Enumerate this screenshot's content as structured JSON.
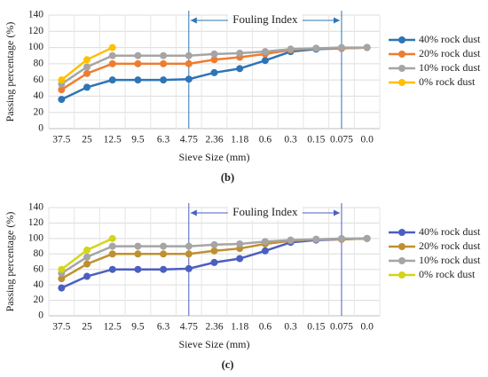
{
  "chart_data": [
    {
      "type": "line",
      "caption": "(b)",
      "xlabel": "Sieve  Size (mm)",
      "ylabel": "Passing percentage (%)",
      "categories": [
        "37.5",
        "25",
        "12.5",
        "9.5",
        "6.3",
        "4.75",
        "2.36",
        "1.18",
        "0.6",
        "0.3",
        "0.15",
        "0.075",
        "0.0"
      ],
      "ylim": [
        0,
        140
      ],
      "yticks": [
        0,
        20,
        40,
        60,
        80,
        100,
        120,
        140
      ],
      "grid": true,
      "annotation": {
        "text": "Fouling Index",
        "from": "4.75",
        "to": "0.075",
        "color": "#2e75b6"
      },
      "series": [
        {
          "name": "40% rock dust",
          "color": "#2e75b6",
          "values": [
            36,
            51,
            60,
            60,
            60,
            61,
            69,
            74,
            84,
            95,
            98,
            99,
            100
          ]
        },
        {
          "name": "20% rock dust",
          "color": "#ed7d31",
          "values": [
            48,
            68,
            80,
            80,
            80,
            80,
            85,
            88,
            92,
            97,
            99,
            99,
            100
          ]
        },
        {
          "name": "10% rock dust",
          "color": "#a5a5a5",
          "values": [
            55,
            76,
            90,
            90,
            90,
            90,
            92,
            93,
            95,
            98,
            99,
            100,
            100
          ]
        },
        {
          "name": "0% rock dust",
          "color": "#ffc000",
          "values": [
            60,
            85,
            100,
            null,
            null,
            null,
            null,
            null,
            null,
            null,
            null,
            null,
            null
          ]
        }
      ]
    },
    {
      "type": "line",
      "caption": "(c)",
      "xlabel": "Sieve  Size (mm)",
      "ylabel": "Passing percentage (%)",
      "categories": [
        "37.5",
        "25",
        "12.5",
        "9.5",
        "6.3",
        "4.75",
        "2.36",
        "1.18",
        "0.6",
        "0.3",
        "0.15",
        "0.075",
        "0.0"
      ],
      "ylim": [
        0,
        140
      ],
      "yticks": [
        0,
        20,
        40,
        60,
        80,
        100,
        120,
        140
      ],
      "grid": true,
      "annotation": {
        "text": "Fouling Index",
        "from": "4.75",
        "to": "0.075",
        "color": "#4a5fc1"
      },
      "series": [
        {
          "name": "40% rock dust",
          "color": "#4a5fc1",
          "values": [
            36,
            51,
            60,
            60,
            60,
            61,
            69,
            74,
            84,
            95,
            98,
            99,
            100
          ]
        },
        {
          "name": "20% rock dust",
          "color": "#bf9030",
          "values": [
            48,
            67,
            80,
            80,
            80,
            80,
            84,
            87,
            93,
            97,
            99,
            99,
            100
          ]
        },
        {
          "name": "10% rock dust",
          "color": "#a5a5a5",
          "values": [
            55,
            76,
            90,
            90,
            90,
            90,
            92,
            93,
            96,
            98,
            99,
            100,
            100
          ]
        },
        {
          "name": "0% rock dust",
          "color": "#d4d41a",
          "values": [
            60,
            85,
            100,
            null,
            null,
            null,
            null,
            null,
            null,
            null,
            null,
            null,
            null
          ]
        }
      ]
    }
  ]
}
